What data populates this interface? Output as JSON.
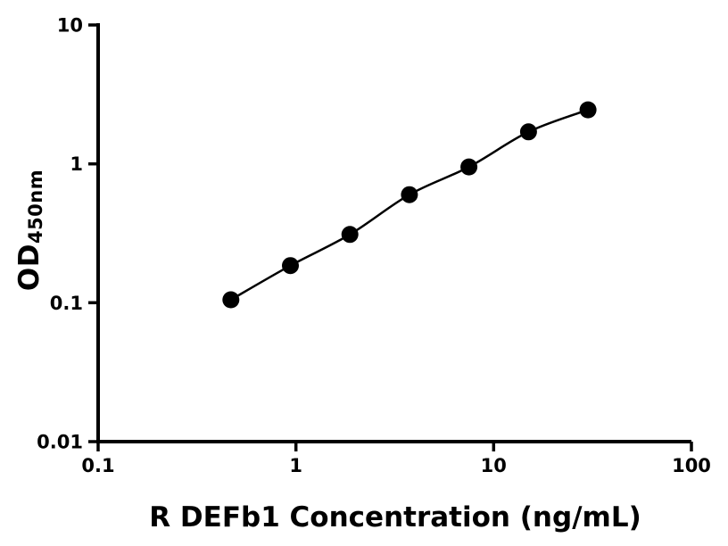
{
  "chart_data": {
    "type": "scatter",
    "title": "",
    "xlabel": "R DEFb1 Concentration (ng/mL)",
    "ylabel_main": "OD",
    "ylabel_sub": "450nm",
    "x_scale": "log",
    "y_scale": "log",
    "xlim": [
      0.1,
      100
    ],
    "ylim": [
      0.01,
      10
    ],
    "x_ticks": [
      0.1,
      1,
      10,
      100
    ],
    "x_tick_labels": [
      "0.1",
      "1",
      "10",
      "100"
    ],
    "y_ticks": [
      0.01,
      0.1,
      1,
      10
    ],
    "y_tick_labels": [
      "0.01",
      "0.1",
      "1",
      "10"
    ],
    "x": [
      0.469,
      0.938,
      1.875,
      3.75,
      7.5,
      15,
      30
    ],
    "y": [
      0.105,
      0.185,
      0.31,
      0.6,
      0.95,
      1.7,
      2.45
    ],
    "grid": false,
    "legend": "none",
    "color": "#000000",
    "marker": "circle",
    "line": "smooth"
  }
}
